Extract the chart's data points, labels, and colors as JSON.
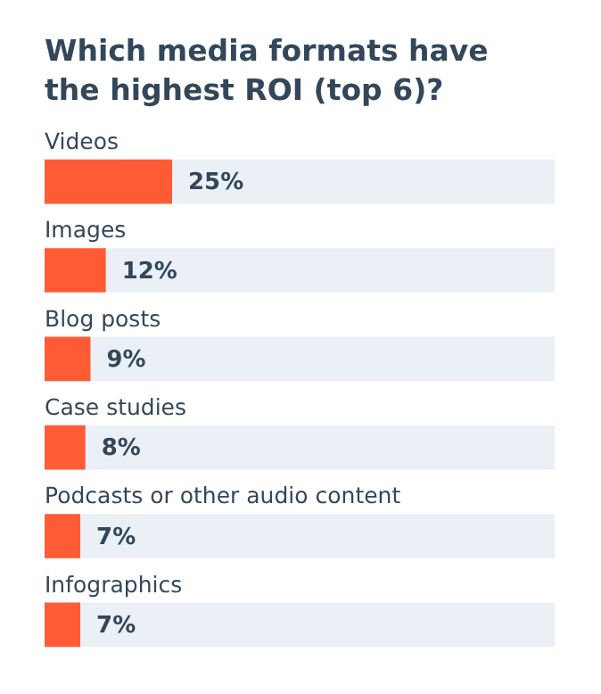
{
  "chart_data": {
    "type": "bar",
    "orientation": "horizontal",
    "title": "Which media formats have the highest ROI (top 6)?",
    "categories": [
      "Videos",
      "Images",
      "Blog posts",
      "Case studies",
      "Podcasts or other audio content",
      "Infographics"
    ],
    "values": [
      25,
      12,
      9,
      8,
      7,
      7
    ],
    "value_labels": [
      "25%",
      "12%",
      "9%",
      "8%",
      "7%",
      "7%"
    ],
    "color": "#ff5c35",
    "xlim": [
      0,
      100
    ]
  }
}
